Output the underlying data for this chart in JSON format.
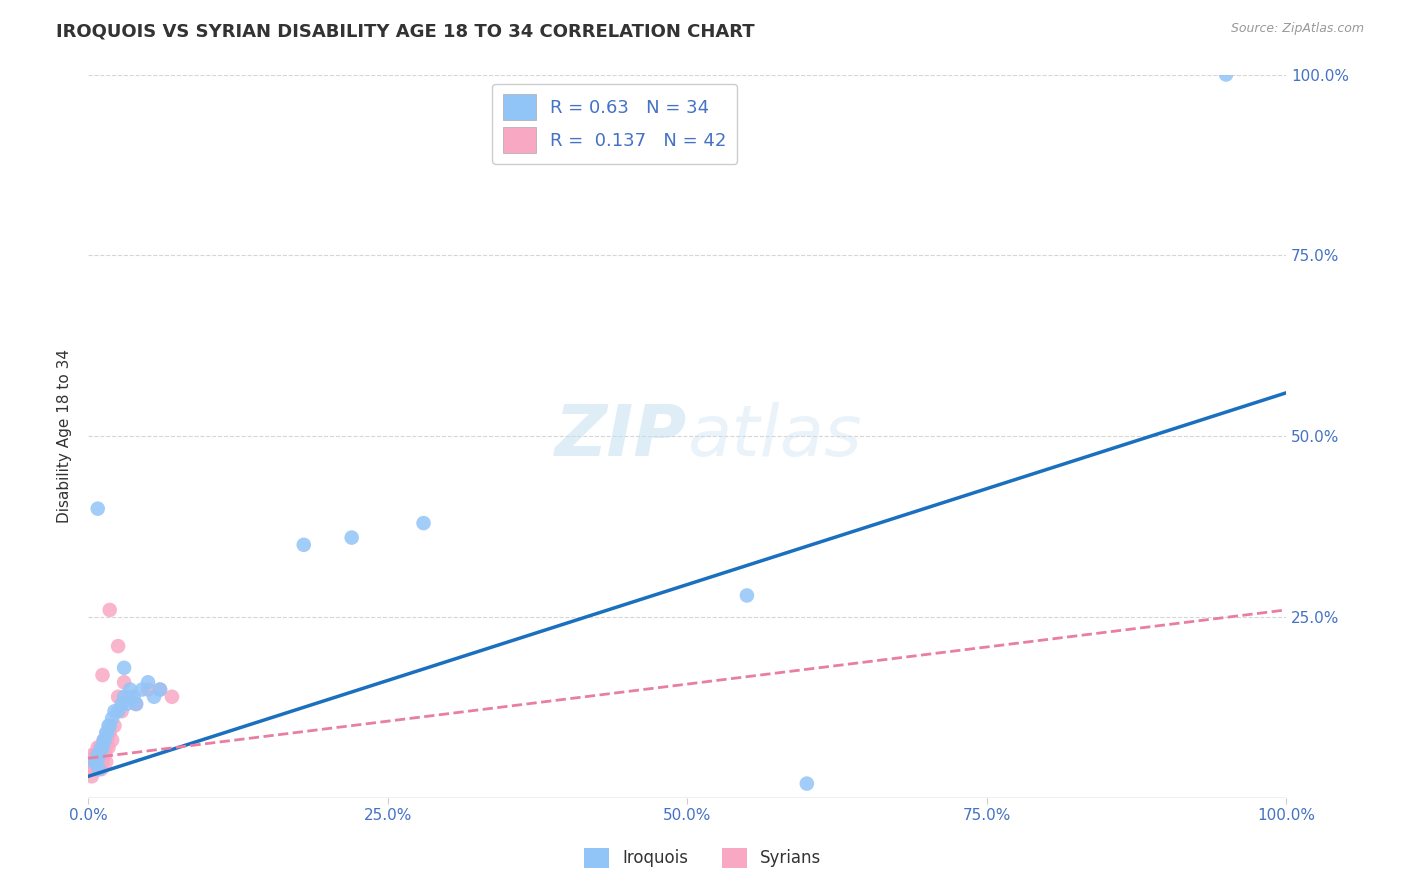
{
  "title": "IROQUOIS VS SYRIAN DISABILITY AGE 18 TO 34 CORRELATION CHART",
  "source": "Source: ZipAtlas.com",
  "ylabel": "Disability Age 18 to 34",
  "iroquois_R": 0.63,
  "iroquois_N": 34,
  "syrians_R": 0.137,
  "syrians_N": 42,
  "iroquois_color": "#92C5F7",
  "syrians_color": "#F9A8C4",
  "iroquois_line_color": "#1A6FBF",
  "syrians_line_color": "#E87EA1",
  "title_color": "#333333",
  "tick_color": "#4472C4",
  "watermark_color": "#D0E8F5",
  "iroquois_x": [
    0.005,
    0.007,
    0.008,
    0.009,
    0.01,
    0.011,
    0.012,
    0.013,
    0.014,
    0.015,
    0.016,
    0.017,
    0.018,
    0.02,
    0.022,
    0.025,
    0.028,
    0.03,
    0.032,
    0.035,
    0.038,
    0.04,
    0.045,
    0.05,
    0.055,
    0.06,
    0.22,
    0.28,
    0.55,
    0.6,
    0.95,
    0.18,
    0.008,
    0.03
  ],
  "iroquois_y": [
    0.05,
    0.05,
    0.06,
    0.04,
    0.06,
    0.07,
    0.07,
    0.08,
    0.08,
    0.09,
    0.09,
    0.1,
    0.1,
    0.11,
    0.12,
    0.12,
    0.13,
    0.14,
    0.13,
    0.15,
    0.14,
    0.13,
    0.15,
    0.16,
    0.14,
    0.15,
    0.36,
    0.38,
    0.28,
    0.02,
    1.0,
    0.35,
    0.4,
    0.18
  ],
  "syrians_x": [
    0.002,
    0.003,
    0.003,
    0.004,
    0.004,
    0.005,
    0.005,
    0.006,
    0.006,
    0.007,
    0.007,
    0.008,
    0.008,
    0.009,
    0.009,
    0.01,
    0.01,
    0.011,
    0.011,
    0.012,
    0.012,
    0.013,
    0.014,
    0.015,
    0.015,
    0.016,
    0.017,
    0.018,
    0.02,
    0.022,
    0.025,
    0.028,
    0.03,
    0.035,
    0.04,
    0.05,
    0.06,
    0.07,
    0.025,
    0.018,
    0.012,
    0.008
  ],
  "syrians_y": [
    0.04,
    0.05,
    0.03,
    0.04,
    0.06,
    0.04,
    0.05,
    0.05,
    0.06,
    0.04,
    0.06,
    0.05,
    0.07,
    0.04,
    0.06,
    0.05,
    0.07,
    0.06,
    0.04,
    0.07,
    0.05,
    0.08,
    0.06,
    0.07,
    0.05,
    0.08,
    0.07,
    0.09,
    0.08,
    0.1,
    0.14,
    0.12,
    0.16,
    0.14,
    0.13,
    0.15,
    0.15,
    0.14,
    0.21,
    0.26,
    0.17,
    0.05
  ],
  "iroquois_line_x": [
    0.0,
    1.0
  ],
  "iroquois_line_y": [
    0.03,
    0.56
  ],
  "syrians_line_x": [
    0.0,
    1.0
  ],
  "syrians_line_y": [
    0.055,
    0.26
  ],
  "xlim": [
    0.0,
    1.0
  ],
  "ylim": [
    0.0,
    1.0
  ],
  "xticks": [
    0.0,
    0.25,
    0.5,
    0.75,
    1.0
  ],
  "yticks": [
    0.0,
    0.25,
    0.5,
    0.75,
    1.0
  ],
  "xticklabels": [
    "0.0%",
    "25.0%",
    "50.0%",
    "75.0%",
    "100.0%"
  ],
  "right_yticklabels": [
    "",
    "25.0%",
    "50.0%",
    "75.0%",
    "100.0%"
  ],
  "background_color": "#FFFFFF",
  "grid_color": "#CCCCCC"
}
